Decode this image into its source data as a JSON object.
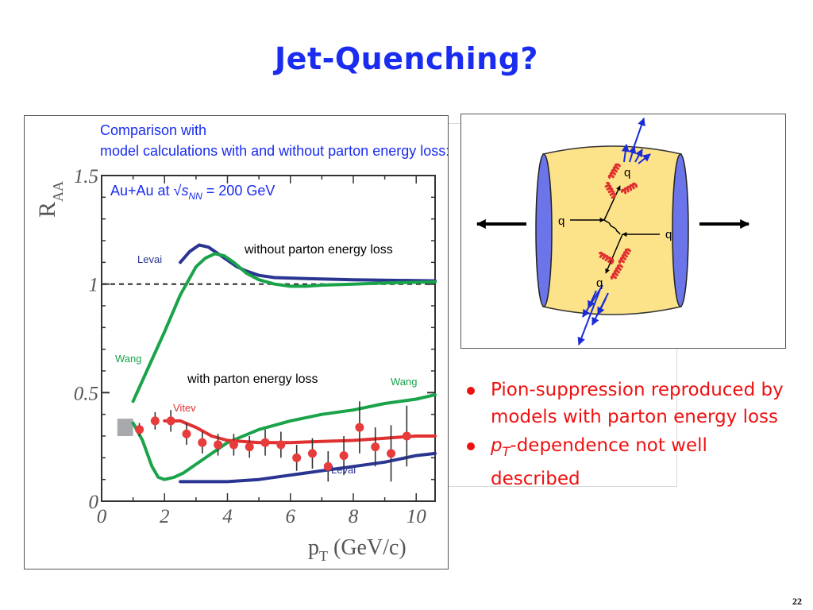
{
  "slide": {
    "title": "Jet-Quenching?",
    "page_number": "22",
    "bullets": [
      {
        "text": "Pion-suppression reproduced by models with parton energy loss"
      },
      {
        "italic": "p",
        "sub": "T",
        "rest": "-dependence not well described"
      }
    ]
  },
  "colors": {
    "title": "#1a2cf0",
    "bullets": "#ee1111",
    "levai": "#2a3592",
    "wang": "#1aa34a",
    "vitev": "#e03030",
    "data": "#e83b3b",
    "annotation_blue": "#1a2cf0",
    "medium": "#fce38a",
    "nuclei": "#6b74e8"
  },
  "chart_data": {
    "type": "line",
    "note_text": "Comparison with model calculations with and without parton energy loss:",
    "system": {
      "prefix": "Au+Au at √",
      "s": "s",
      "sub": "NN",
      "suffix": " = 200 GeV"
    },
    "ylabel": {
      "main": "R",
      "sub": "AA"
    },
    "xlabel": {
      "main": "p",
      "sub": "T",
      "suffix": " (GeV/c)"
    },
    "xlim": [
      0,
      10.6
    ],
    "ylim": [
      0,
      1.5
    ],
    "x_ticks": [
      "0",
      "2",
      "4",
      "6",
      "8",
      "10"
    ],
    "y_ticks": [
      "0",
      "0.5",
      "1",
      "1.5"
    ],
    "reference_line": {
      "y": 1,
      "style": "dashed"
    },
    "annotations": {
      "without": "without parton energy loss",
      "with": "with parton energy loss"
    },
    "series": [
      {
        "name": "Levai",
        "label_group": "without",
        "x": [
          2.5,
          2.8,
          3.1,
          3.4,
          3.7,
          4.0,
          4.3,
          4.6,
          5.0,
          5.5,
          6.5,
          8,
          10.6
        ],
        "y": [
          1.1,
          1.15,
          1.18,
          1.17,
          1.14,
          1.11,
          1.08,
          1.06,
          1.04,
          1.03,
          1.025,
          1.02,
          1.015
        ]
      },
      {
        "name": "Wang",
        "label_group": "without",
        "x": [
          1.0,
          1.5,
          2.0,
          2.5,
          3.0,
          3.3,
          3.6,
          3.9,
          4.2,
          4.6,
          5.0,
          5.5,
          6.0,
          6.5,
          7.0,
          8,
          9,
          10.6
        ],
        "y": [
          0.46,
          0.62,
          0.78,
          0.95,
          1.08,
          1.12,
          1.14,
          1.13,
          1.1,
          1.05,
          1.02,
          1.0,
          0.99,
          0.99,
          0.995,
          1.0,
          1.005,
          1.01
        ]
      },
      {
        "name": "Wang",
        "label_group": "with",
        "x": [
          1.0,
          1.3,
          1.6,
          1.8,
          2.0,
          2.3,
          2.6,
          3.0,
          3.5,
          4.0,
          5.0,
          6.0,
          7.0,
          8.0,
          9.0,
          10.0,
          10.6
        ],
        "y": [
          0.36,
          0.28,
          0.16,
          0.11,
          0.1,
          0.11,
          0.13,
          0.17,
          0.22,
          0.27,
          0.33,
          0.37,
          0.4,
          0.42,
          0.45,
          0.47,
          0.49
        ]
      },
      {
        "name": "Vitev",
        "label_group": "with",
        "x": [
          2.0,
          2.5,
          3.0,
          3.5,
          4.0,
          5.0,
          6.0,
          7.0,
          8.0,
          9.0,
          10.0,
          10.6
        ],
        "y": [
          0.37,
          0.37,
          0.34,
          0.3,
          0.28,
          0.27,
          0.27,
          0.275,
          0.28,
          0.29,
          0.3,
          0.3
        ]
      },
      {
        "name": "Levai",
        "label_group": "with",
        "x": [
          2.5,
          3.0,
          4.0,
          5.0,
          6.0,
          7.0,
          8.0,
          9.0,
          10.0,
          10.6
        ],
        "y": [
          0.09,
          0.09,
          0.09,
          0.1,
          0.12,
          0.14,
          0.16,
          0.18,
          0.21,
          0.22
        ]
      }
    ],
    "data_points": {
      "x": [
        1.2,
        1.7,
        2.2,
        2.7,
        3.2,
        3.7,
        4.2,
        4.7,
        5.2,
        5.7,
        6.2,
        6.7,
        7.2,
        7.7,
        8.2,
        8.7,
        9.2,
        9.7
      ],
      "y": [
        0.33,
        0.37,
        0.37,
        0.31,
        0.27,
        0.26,
        0.26,
        0.25,
        0.27,
        0.26,
        0.2,
        0.22,
        0.16,
        0.21,
        0.34,
        0.25,
        0.22,
        0.3
      ],
      "yerr": [
        0.03,
        0.04,
        0.05,
        0.05,
        0.05,
        0.05,
        0.05,
        0.05,
        0.06,
        0.06,
        0.06,
        0.07,
        0.07,
        0.09,
        0.12,
        0.09,
        0.13,
        0.14
      ]
    },
    "normalization_box": {
      "x": 0.75,
      "y": 0.34,
      "half_width": 0.25,
      "half_height": 0.04
    }
  },
  "diagram": {
    "labels": {
      "quark": "q"
    }
  }
}
